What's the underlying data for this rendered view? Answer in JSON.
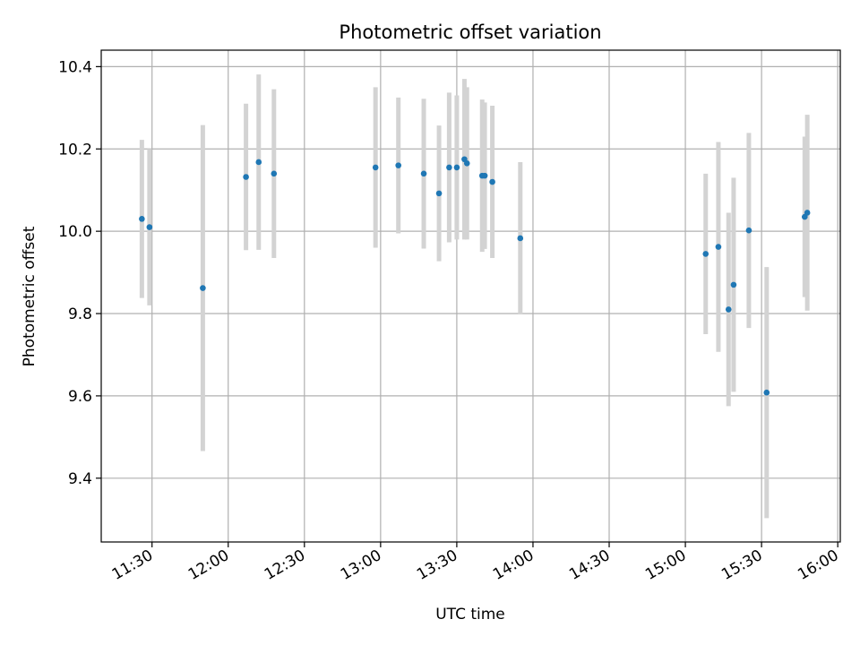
{
  "chart_data": {
    "type": "scatter",
    "title": "Photometric offset variation",
    "xlabel": "UTC time",
    "ylabel": "Photometric offset",
    "x_ticks": [
      "11:30",
      "12:00",
      "12:30",
      "13:00",
      "13:30",
      "14:00",
      "14:30",
      "15:00",
      "15:30",
      "16:00"
    ],
    "y_ticks": [
      "9.4",
      "9.6",
      "9.8",
      "10.0",
      "10.2",
      "10.4"
    ],
    "xlim": [
      "11:10",
      "16:01"
    ],
    "ylim": [
      9.245,
      10.44
    ],
    "grid": true,
    "errorbar_color": "#d3d3d3",
    "marker_color": "#1f77b4",
    "series": [
      {
        "points": [
          {
            "x": "11:26",
            "y": 10.03,
            "err": 0.192
          },
          {
            "x": "11:29",
            "y": 10.01,
            "err": 0.19
          },
          {
            "x": "11:50",
            "y": 9.862,
            "err": 0.396
          },
          {
            "x": "12:07",
            "y": 10.132,
            "err": 0.178
          },
          {
            "x": "12:12",
            "y": 10.168,
            "err": 0.213
          },
          {
            "x": "12:18",
            "y": 10.14,
            "err": 0.205
          },
          {
            "x": "12:58",
            "y": 10.155,
            "err": 0.195
          },
          {
            "x": "13:07",
            "y": 10.16,
            "err": 0.165
          },
          {
            "x": "13:17",
            "y": 10.14,
            "err": 0.182
          },
          {
            "x": "13:23",
            "y": 10.092,
            "err": 0.165
          },
          {
            "x": "13:27",
            "y": 10.155,
            "err": 0.182
          },
          {
            "x": "13:30",
            "y": 10.155,
            "err": 0.175
          },
          {
            "x": "13:33",
            "y": 10.175,
            "err": 0.195
          },
          {
            "x": "13:34",
            "y": 10.165,
            "err": 0.185
          },
          {
            "x": "13:40",
            "y": 10.135,
            "err": 0.185
          },
          {
            "x": "13:41",
            "y": 10.135,
            "err": 0.178
          },
          {
            "x": "13:44",
            "y": 10.12,
            "err": 0.185
          },
          {
            "x": "13:55",
            "y": 9.983,
            "err": 0.185
          },
          {
            "x": "15:08",
            "y": 9.945,
            "err": 0.195
          },
          {
            "x": "15:13",
            "y": 9.962,
            "err": 0.255
          },
          {
            "x": "15:17",
            "y": 9.81,
            "err": 0.235
          },
          {
            "x": "15:19",
            "y": 9.87,
            "err": 0.26
          },
          {
            "x": "15:25",
            "y": 10.002,
            "err": 0.237
          },
          {
            "x": "15:32",
            "y": 9.608,
            "err": 0.305
          },
          {
            "x": "15:47",
            "y": 10.035,
            "err": 0.195
          },
          {
            "x": "15:48",
            "y": 10.045,
            "err": 0.238
          }
        ]
      }
    ]
  }
}
